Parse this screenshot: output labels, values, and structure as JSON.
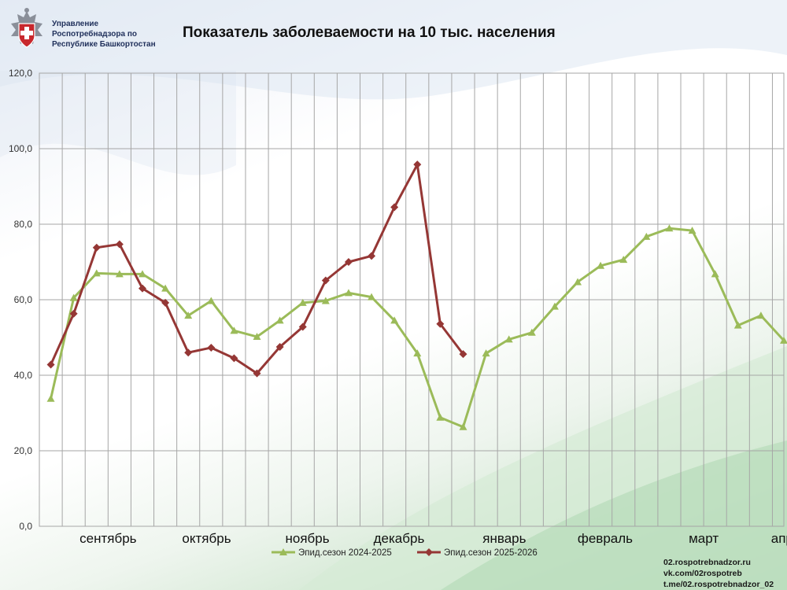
{
  "header": {
    "org_lines": [
      "Управление",
      "Роспотребнадзора по",
      "Республике Башкортостан"
    ]
  },
  "footer": {
    "contacts": [
      "02.rospotrebnadzor.ru",
      "vk.com/02rospotreb",
      "t.me/02.rospotrebnadzor_02"
    ]
  },
  "colors": {
    "series_2024": "#9bbb59",
    "series_2025": "#953735",
    "grid": "#a6a6a6"
  },
  "chart_data": {
    "type": "line",
    "title": "Показатель заболеваемости на 10 тыс. населения",
    "ylim": [
      0,
      120
    ],
    "yticks": [
      "0,0",
      "20,0",
      "40,0",
      "60,0",
      "80,0",
      "100,0",
      "120,0"
    ],
    "grid": true,
    "legend_position": "bottom",
    "week_count": 32,
    "months": [
      {
        "label": "сентябрь",
        "week": 2.5
      },
      {
        "label": "октябрь",
        "week": 6.8
      },
      {
        "label": "ноябрь",
        "week": 11.2
      },
      {
        "label": "декабрь",
        "week": 15.2
      },
      {
        "label": "январь",
        "week": 19.8
      },
      {
        "label": "февраль",
        "week": 24.2
      },
      {
        "label": "март",
        "week": 28.5
      },
      {
        "label": "апрель",
        "week": 32.4
      }
    ],
    "series": [
      {
        "name": "Эпид.сезон 2024-2025",
        "color": "#9bbb59",
        "marker": "triangle",
        "values": [
          33.8,
          60.5,
          67.0,
          66.8,
          66.8,
          63.0,
          55.8,
          59.7,
          51.8,
          50.2,
          54.5,
          59.2,
          59.7,
          61.8,
          60.7,
          54.5,
          45.8,
          28.8,
          26.3,
          45.8,
          49.5,
          51.3,
          58.2,
          64.7,
          69.0,
          70.6,
          76.7,
          78.9,
          78.3,
          66.8,
          53.2,
          55.8,
          49.2
        ]
      },
      {
        "name": "Эпид.сезон 2025-2026",
        "color": "#953735",
        "marker": "diamond",
        "values": [
          42.8,
          56.3,
          73.8,
          74.7,
          63.0,
          59.2,
          46.0,
          47.3,
          44.5,
          40.5,
          47.5,
          52.8,
          65.1,
          70.0,
          71.6,
          84.5,
          95.8,
          53.6,
          45.6
        ]
      }
    ]
  }
}
